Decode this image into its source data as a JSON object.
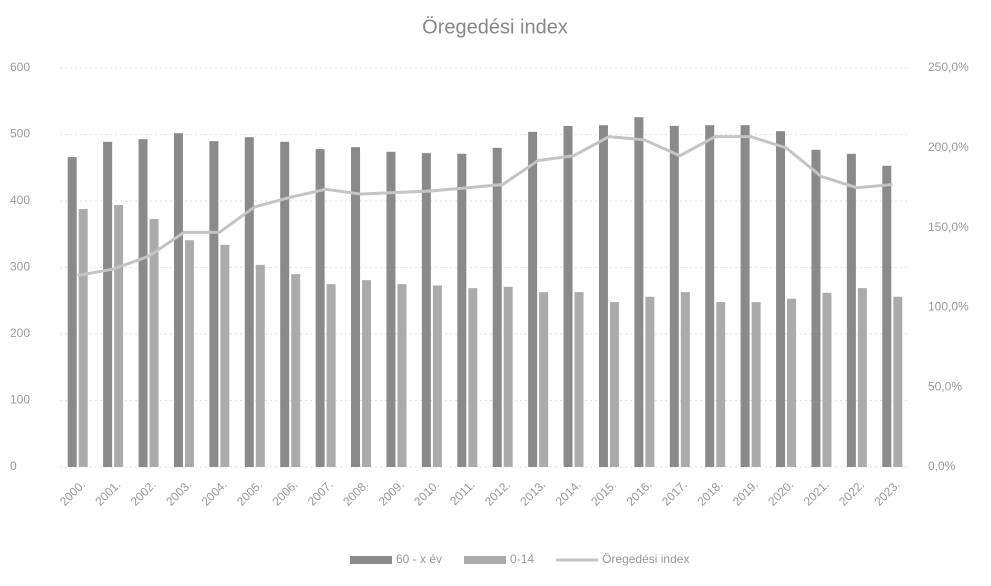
{
  "chart_data": {
    "type": "bar_line",
    "title": "Öregedési index",
    "categories": [
      "2000.",
      "2001.",
      "2002.",
      "2003.",
      "2004.",
      "2005.",
      "2006.",
      "2007.",
      "2008.",
      "2009.",
      "2010.",
      "2011.",
      "2012.",
      "2013.",
      "2014.",
      "2015.",
      "2016.",
      "2017.",
      "2018.",
      "2019.",
      "2020.",
      "2021.",
      "2022.",
      "2023."
    ],
    "series": [
      {
        "name": "60 - x év",
        "type": "bar",
        "color": "#8a8a8a",
        "values": [
          466,
          489,
          493,
          502,
          490,
          496,
          489,
          478,
          481,
          474,
          472,
          471,
          480,
          504,
          513,
          514,
          526,
          513,
          514,
          514,
          505,
          477,
          471,
          453
        ]
      },
      {
        "name": "0-14",
        "type": "bar",
        "color": "#ababab",
        "values": [
          388,
          394,
          373,
          341,
          334,
          304,
          290,
          275,
          281,
          275,
          273,
          269,
          271,
          263,
          263,
          248,
          256,
          263,
          248,
          248,
          253,
          262,
          269,
          256
        ]
      },
      {
        "name": "Öregedési index",
        "type": "line",
        "axis": "y2",
        "color": "#c4c4c4",
        "values": [
          120,
          124,
          132,
          147,
          147,
          163,
          169,
          174,
          171,
          172,
          173,
          175,
          177,
          192,
          195,
          207,
          205,
          195,
          207,
          207,
          200,
          182,
          175,
          177
        ]
      }
    ],
    "ylim": [
      0,
      600
    ],
    "yticks": [
      0,
      100,
      200,
      300,
      400,
      500,
      600
    ],
    "y2lim": [
      0,
      250
    ],
    "y2ticks": [
      {
        "value": 0,
        "label": "0,0%"
      },
      {
        "value": 50,
        "label": "50,0%"
      },
      {
        "value": 100,
        "label": "100,0%"
      },
      {
        "value": 150,
        "label": "150,0%"
      },
      {
        "value": 200,
        "label": "200,0%"
      },
      {
        "value": 250,
        "label": "250,0%"
      }
    ],
    "grid": true,
    "legend": "bottom"
  }
}
